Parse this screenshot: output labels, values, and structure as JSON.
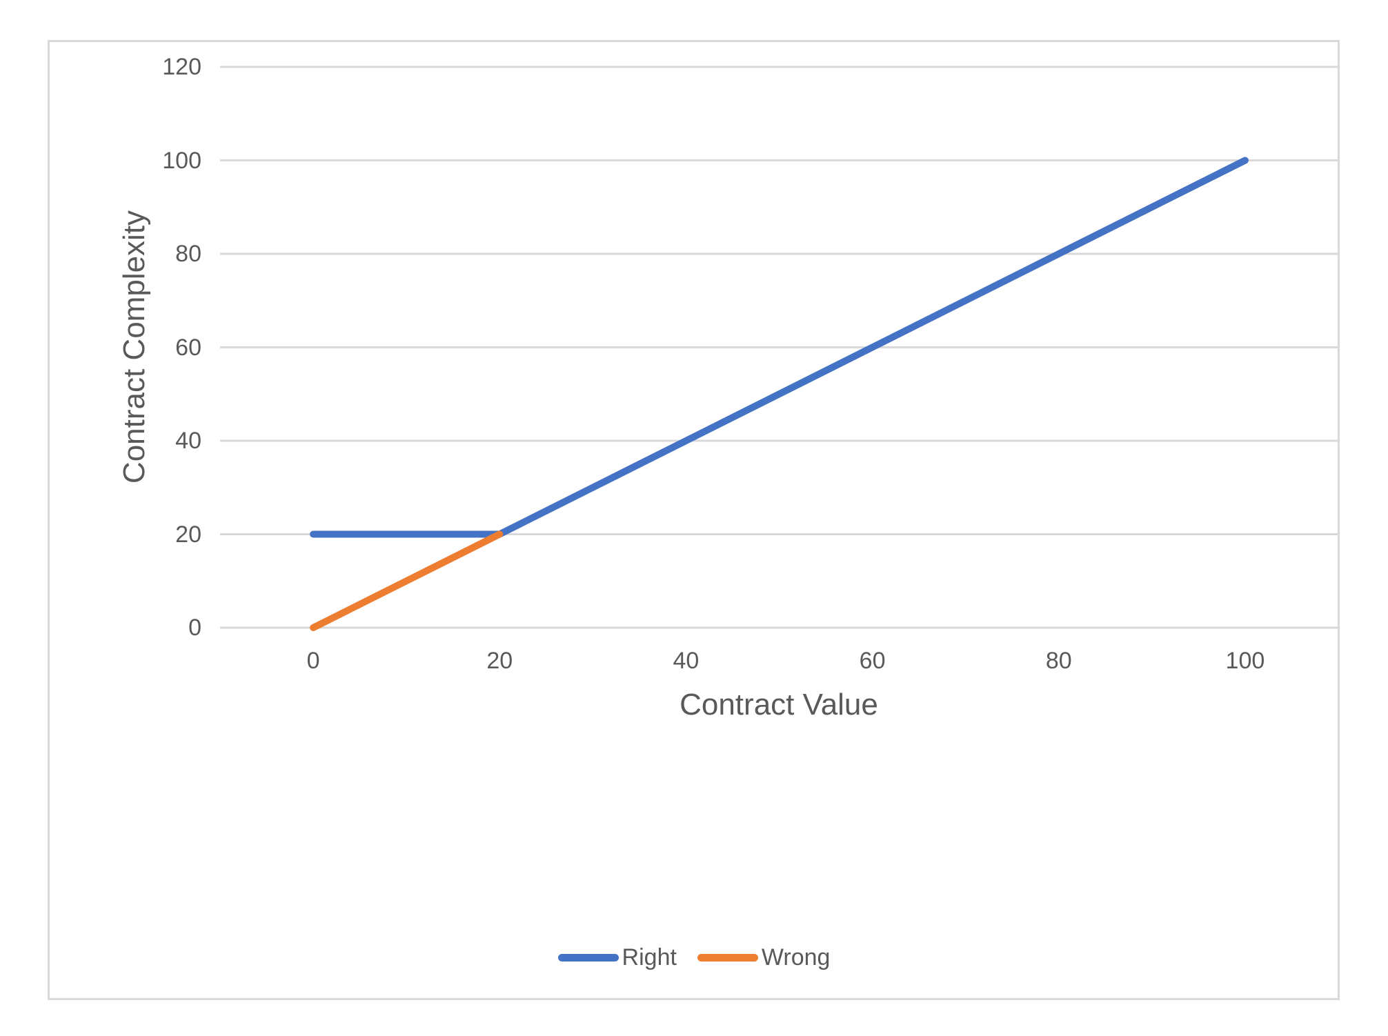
{
  "chart": {
    "background": "#FFFFFF",
    "border_color": "#D9D9D9",
    "text_color": "#595959",
    "grid_color": "#D9D9D9"
  },
  "chart_data": {
    "type": "line",
    "title": "",
    "xlabel": "Contract Value",
    "ylabel": "Contract Complexity",
    "xlim": [
      -10,
      110
    ],
    "ylim": [
      0,
      120
    ],
    "xticks": [
      0,
      20,
      40,
      60,
      80,
      100
    ],
    "yticks": [
      0,
      20,
      40,
      60,
      80,
      100,
      120
    ],
    "grid": "horizontal",
    "legend_position": "bottom",
    "series": [
      {
        "name": "Right",
        "color": "#4472C4",
        "x": [
          0,
          20,
          100
        ],
        "y": [
          20,
          20,
          100
        ]
      },
      {
        "name": "Wrong",
        "color": "#ED7D31",
        "x": [
          0,
          20
        ],
        "y": [
          0,
          20
        ]
      }
    ]
  }
}
